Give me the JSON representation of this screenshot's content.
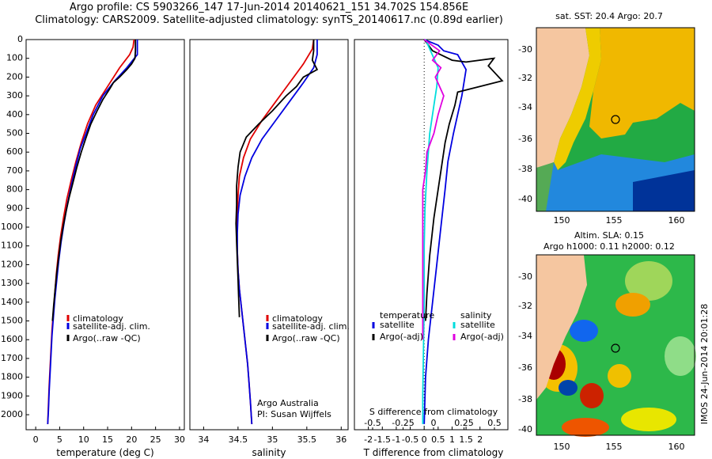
{
  "header": {
    "line1": "Argo profile: CS 5903266_147 17-Jun-2014 20140621_151 34.702S 154.856E",
    "line2": "Climatology: CARS2009. Satellite-adjusted climatology: synTS_20140617.nc (0.89d earlier)"
  },
  "colors": {
    "climatology": "#e00000",
    "satellite": "#0000e0",
    "argo": "#000000",
    "salinity_satellite": "#00dddd",
    "salinity_argo": "#e000e0",
    "land": "#f5c6a0"
  },
  "chart_data": [
    {
      "type": "line",
      "xlabel": "temperature (deg C)",
      "ylim": [
        2080,
        0
      ],
      "xlim": [
        -2,
        31
      ],
      "xticks": [
        0,
        5,
        10,
        15,
        20,
        25,
        30
      ],
      "yticks": [
        0,
        100,
        200,
        300,
        400,
        500,
        600,
        700,
        800,
        900,
        1000,
        1100,
        1200,
        1300,
        1400,
        1500,
        1600,
        1700,
        1800,
        1900,
        2000
      ],
      "legend": [
        "climatology",
        "satellite-adj. clim.",
        "Argo(..raw -QC)"
      ],
      "series": [
        {
          "name": "climatology",
          "color": "#e00000",
          "points": [
            [
              20.5,
              0
            ],
            [
              20.3,
              40
            ],
            [
              19.6,
              80
            ],
            [
              17.5,
              150
            ],
            [
              15,
              250
            ],
            [
              12.5,
              350
            ],
            [
              10.8,
              450
            ],
            [
              9.5,
              550
            ],
            [
              8.4,
              650
            ],
            [
              7.4,
              750
            ],
            [
              6.5,
              850
            ],
            [
              5.8,
              950
            ],
            [
              5.2,
              1050
            ],
            [
              4.7,
              1150
            ],
            [
              4.3,
              1250
            ],
            [
              4,
              1350
            ],
            [
              3.7,
              1450
            ],
            [
              3.4,
              1550
            ],
            [
              3.2,
              1650
            ],
            [
              3,
              1750
            ],
            [
              2.8,
              1850
            ],
            [
              2.65,
              1950
            ],
            [
              2.5,
              2050
            ]
          ]
        },
        {
          "name": "satellite-adj. clim.",
          "color": "#0000e0",
          "points": [
            [
              21.2,
              0
            ],
            [
              21.2,
              40
            ],
            [
              21.2,
              80
            ],
            [
              19,
              150
            ],
            [
              16.5,
              220
            ],
            [
              14,
              300
            ],
            [
              12,
              400
            ],
            [
              10.5,
              500
            ],
            [
              9.3,
              580
            ],
            [
              8.3,
              680
            ],
            [
              7.4,
              780
            ],
            [
              6.6,
              880
            ],
            [
              5.9,
              980
            ],
            [
              5.3,
              1080
            ],
            [
              4.8,
              1180
            ],
            [
              4.4,
              1280
            ],
            [
              4,
              1380
            ],
            [
              3.7,
              1480
            ],
            [
              3.4,
              1580
            ],
            [
              3.2,
              1680
            ],
            [
              3,
              1780
            ],
            [
              2.8,
              1880
            ],
            [
              2.65,
              1980
            ],
            [
              2.5,
              2050
            ]
          ]
        },
        {
          "name": "Argo(..raw -QC)",
          "color": "#000000",
          "points": [
            [
              20.8,
              0
            ],
            [
              20.8,
              60
            ],
            [
              20.7,
              100
            ],
            [
              20,
              130
            ],
            [
              19,
              160
            ],
            [
              17.5,
              200
            ],
            [
              16.2,
              230
            ],
            [
              15.5,
              260
            ],
            [
              14,
              320
            ],
            [
              12.8,
              380
            ],
            [
              11.5,
              450
            ],
            [
              10.4,
              530
            ],
            [
              9.5,
              600
            ],
            [
              8.6,
              680
            ],
            [
              7.8,
              760
            ],
            [
              7,
              840
            ],
            [
              6.3,
              920
            ],
            [
              5.7,
              1000
            ],
            [
              5.2,
              1080
            ],
            [
              4.8,
              1160
            ],
            [
              4.4,
              1240
            ],
            [
              4.05,
              1330
            ],
            [
              3.75,
              1420
            ],
            [
              3.5,
              1500
            ]
          ]
        }
      ]
    },
    {
      "type": "line",
      "xlabel": "salinity",
      "ylim": [
        2080,
        0
      ],
      "xlim": [
        33.8,
        36.1
      ],
      "xticks": [
        34,
        34.5,
        35,
        35.5,
        36
      ],
      "legend": [
        "climatology",
        "satellite-adj. clim.",
        "Argo(..raw -QC)"
      ],
      "annotation": [
        "Argo Australia",
        "PI: Susan Wijffels"
      ],
      "series": [
        {
          "name": "climatology",
          "color": "#e00000",
          "points": [
            [
              35.6,
              0
            ],
            [
              35.58,
              50
            ],
            [
              35.45,
              130
            ],
            [
              35.25,
              230
            ],
            [
              35.05,
              330
            ],
            [
              34.85,
              430
            ],
            [
              34.68,
              530
            ],
            [
              34.58,
              630
            ],
            [
              34.52,
              730
            ],
            [
              34.5,
              830
            ],
            [
              34.49,
              930
            ],
            [
              34.48,
              1030
            ],
            [
              34.49,
              1130
            ],
            [
              34.5,
              1230
            ],
            [
              34.52,
              1330
            ],
            [
              34.55,
              1430
            ],
            [
              34.58,
              1530
            ],
            [
              34.61,
              1630
            ],
            [
              34.64,
              1730
            ],
            [
              34.66,
              1830
            ],
            [
              34.68,
              1930
            ],
            [
              34.7,
              2050
            ]
          ]
        },
        {
          "name": "satellite-adj. clim.",
          "color": "#0000e0",
          "points": [
            [
              35.65,
              0
            ],
            [
              35.65,
              80
            ],
            [
              35.6,
              150
            ],
            [
              35.45,
              230
            ],
            [
              35.25,
              330
            ],
            [
              35.05,
              430
            ],
            [
              34.85,
              530
            ],
            [
              34.7,
              630
            ],
            [
              34.6,
              730
            ],
            [
              34.53,
              830
            ],
            [
              34.5,
              930
            ],
            [
              34.49,
              1030
            ],
            [
              34.49,
              1130
            ],
            [
              34.5,
              1230
            ],
            [
              34.52,
              1330
            ],
            [
              34.55,
              1430
            ],
            [
              34.58,
              1530
            ],
            [
              34.61,
              1630
            ],
            [
              34.64,
              1730
            ],
            [
              34.66,
              1830
            ],
            [
              34.68,
              1930
            ],
            [
              34.7,
              2050
            ]
          ]
        },
        {
          "name": "Argo(..raw -QC)",
          "color": "#000000",
          "points": [
            [
              35.6,
              0
            ],
            [
              35.6,
              60
            ],
            [
              35.58,
              110
            ],
            [
              35.65,
              160
            ],
            [
              35.45,
              200
            ],
            [
              35.35,
              250
            ],
            [
              35.2,
              300
            ],
            [
              35,
              380
            ],
            [
              34.8,
              450
            ],
            [
              34.62,
              520
            ],
            [
              34.53,
              600
            ],
            [
              34.5,
              680
            ],
            [
              34.48,
              780
            ],
            [
              34.48,
              880
            ],
            [
              34.47,
              980
            ],
            [
              34.48,
              1080
            ],
            [
              34.49,
              1180
            ],
            [
              34.5,
              1280
            ],
            [
              34.51,
              1380
            ],
            [
              34.52,
              1480
            ]
          ]
        }
      ]
    },
    {
      "type": "line",
      "title": "S difference from climatology",
      "xlabel": "T difference from climatology",
      "ylim": [
        2080,
        0
      ],
      "xlim": [
        -2.5,
        3
      ],
      "xticks": [
        -2,
        -1.5,
        -1,
        -0.5,
        0,
        0.5,
        1,
        1.5,
        2
      ],
      "xticklabels": [
        "-2",
        "-1.5",
        "-1",
        "-0.5",
        "0",
        "0.5",
        "1",
        "1.5",
        "2"
      ],
      "sticks": [
        -0.5,
        -0.25,
        0,
        0.25,
        0.5
      ],
      "sticklabels": [
        "-0.5",
        "-0.25",
        "0",
        "0.25",
        "0.5"
      ],
      "legend_temperature": [
        "temperature",
        "satellite",
        "Argo(-adj)"
      ],
      "legend_salinity": [
        "salinity",
        "satellite",
        "Argo(-adj)"
      ],
      "series": [
        {
          "name": "temperature satellite",
          "color": "#0000e0",
          "points": [
            [
              0,
              0
            ],
            [
              0.5,
              30
            ],
            [
              0.7,
              60
            ],
            [
              1.2,
              80
            ],
            [
              1.5,
              160
            ],
            [
              1.35,
              300
            ],
            [
              1.05,
              500
            ],
            [
              0.85,
              650
            ],
            [
              0.75,
              800
            ],
            [
              0.6,
              1000
            ],
            [
              0.45,
              1200
            ],
            [
              0.3,
              1400
            ],
            [
              0.15,
              1600
            ],
            [
              0.05,
              1800
            ],
            [
              0,
              2050
            ]
          ]
        },
        {
          "name": "temperature Argo(-adj)",
          "color": "#000000",
          "points": [
            [
              0,
              0
            ],
            [
              0.3,
              60
            ],
            [
              1,
              110
            ],
            [
              1.5,
              120
            ],
            [
              2.5,
              100
            ],
            [
              2.3,
              140
            ],
            [
              2.8,
              220
            ],
            [
              2,
              250
            ],
            [
              1.2,
              280
            ],
            [
              1.1,
              350
            ],
            [
              0.9,
              450
            ],
            [
              0.75,
              550
            ],
            [
              0.65,
              650
            ],
            [
              0.5,
              800
            ],
            [
              0.35,
              950
            ],
            [
              0.2,
              1150
            ],
            [
              0.1,
              1350
            ],
            [
              0.05,
              1500
            ]
          ]
        },
        {
          "name": "salinity satellite",
          "color": "#00dddd",
          "points": [
            [
              0.05,
              0
            ],
            [
              0.35,
              100
            ],
            [
              0.5,
              150
            ],
            [
              0.45,
              250
            ],
            [
              0.35,
              350
            ],
            [
              0.2,
              500
            ],
            [
              0.1,
              700
            ],
            [
              0.03,
              900
            ],
            [
              0,
              1100
            ],
            [
              0,
              1400
            ],
            [
              -0.05,
              1900
            ],
            [
              -0.05,
              2050
            ]
          ]
        },
        {
          "name": "salinity Argo(-adj)",
          "color": "#e000e0",
          "points": [
            [
              0,
              0
            ],
            [
              0.55,
              60
            ],
            [
              0.3,
              110
            ],
            [
              0.6,
              150
            ],
            [
              0.4,
              200
            ],
            [
              0.7,
              300
            ],
            [
              0.5,
              400
            ],
            [
              0.35,
              500
            ],
            [
              0.1,
              600
            ],
            [
              0.05,
              700
            ],
            [
              -0.05,
              800
            ],
            [
              -0.05,
              900
            ],
            [
              -0.05,
              1000
            ],
            [
              -0.05,
              1200
            ],
            [
              -0.05,
              1500
            ],
            [
              -0.05,
              1600
            ]
          ]
        }
      ]
    }
  ],
  "maps": {
    "sst": {
      "title": "sat. SST: 20.4 Argo: 20.7",
      "yticks": [
        "-30",
        "-32",
        "-34",
        "-36",
        "-38",
        "-40"
      ],
      "xticks": [
        "150",
        "155",
        "160"
      ]
    },
    "sla": {
      "title1": "Altim. SLA: 0.15",
      "title2": "Argo h1000: 0.11 h2000: 0.12",
      "yticks": [
        "-30",
        "-32",
        "-34",
        "-36",
        "-38",
        "-40"
      ],
      "xticks": [
        "150",
        "155",
        "160"
      ]
    },
    "imos_label": "IMOS 24-Jun-2014 20:01:28"
  }
}
